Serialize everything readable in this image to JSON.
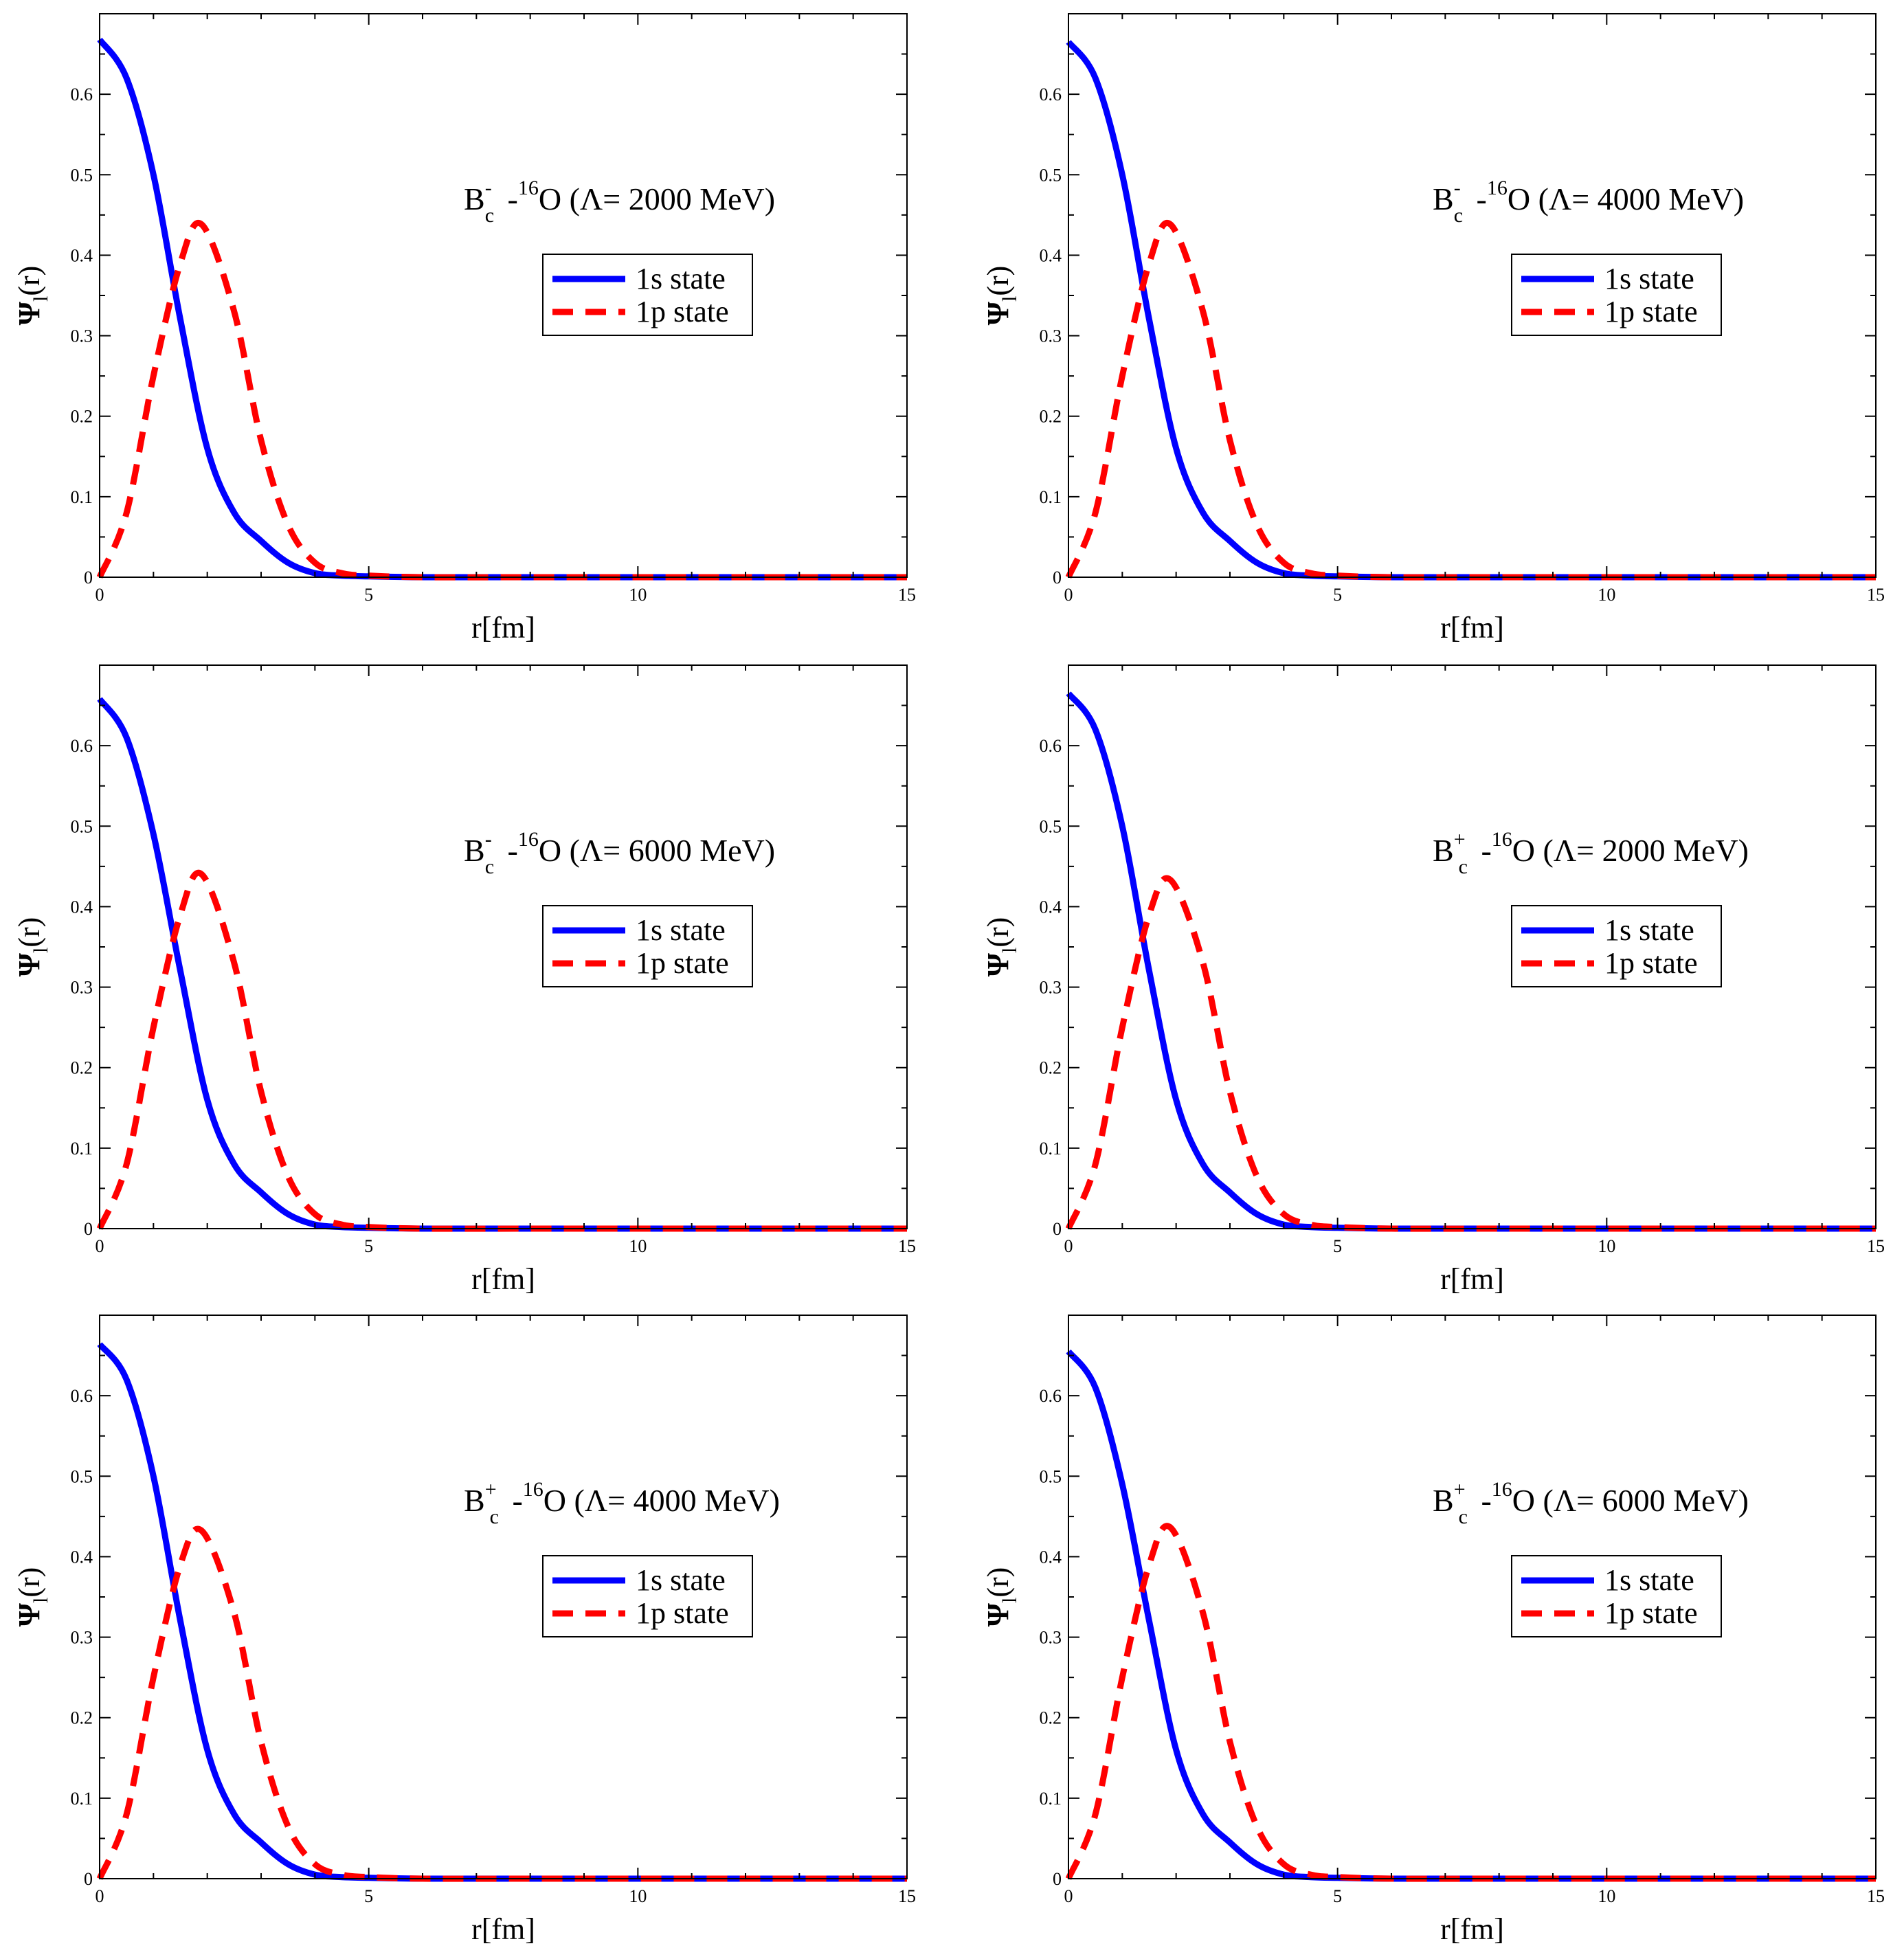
{
  "chart_data": [
    {
      "type": "line",
      "species": "B",
      "charge": "-",
      "subscript": "c",
      "nucleus_mass": "16",
      "nucleus": "O",
      "lambda_text": "(Λ= 2000 MeV)",
      "xlabel": "r[fm]",
      "ylabel_main": "Ψ",
      "ylabel_sub": "l",
      "ylabel_tail": "(r)",
      "xlim": [
        0,
        15
      ],
      "ylim": [
        0,
        0.7
      ],
      "xticks": [
        "0",
        "5",
        "10",
        "15"
      ],
      "yticks": [
        "0",
        "0.1",
        "0.2",
        "0.3",
        "0.4",
        "0.5",
        "0.6"
      ],
      "legend_location": "center-right",
      "series": [
        {
          "name": "1s state",
          "style": "solid",
          "color": "#0000ff",
          "x": [
            0,
            0.5,
            1.0,
            1.5,
            2.0,
            2.5,
            3.0,
            3.5,
            4.0,
            4.5,
            5.0,
            6.0,
            8.0,
            10.0,
            12.0,
            15.0
          ],
          "y": [
            0.668,
            0.62,
            0.5,
            0.32,
            0.16,
            0.08,
            0.045,
            0.018,
            0.005,
            0.002,
            0.001,
            0.0,
            0.0,
            0.0,
            0.0,
            0.0
          ]
        },
        {
          "name": "1p state",
          "style": "dashed",
          "color": "#ff0000",
          "x": [
            0,
            0.5,
            1.0,
            1.5,
            1.9,
            2.5,
            3.0,
            3.5,
            4.0,
            4.5,
            5.0,
            6.0,
            8.0,
            10.0,
            12.0,
            15.0
          ],
          "y": [
            0.0,
            0.08,
            0.25,
            0.39,
            0.438,
            0.33,
            0.17,
            0.065,
            0.018,
            0.005,
            0.002,
            0.0,
            0.0,
            0.0,
            0.0,
            0.0
          ]
        }
      ]
    },
    {
      "type": "line",
      "species": "B",
      "charge": "-",
      "subscript": "c",
      "nucleus_mass": "16",
      "nucleus": "O",
      "lambda_text": "(Λ= 4000 MeV)",
      "xlabel": "r[fm]",
      "ylabel_main": "Ψ",
      "ylabel_sub": "l",
      "ylabel_tail": "(r)",
      "xlim": [
        0,
        15
      ],
      "ylim": [
        0,
        0.7
      ],
      "xticks": [
        "0",
        "5",
        "10",
        "15"
      ],
      "yticks": [
        "0",
        "0.1",
        "0.2",
        "0.3",
        "0.4",
        "0.5",
        "0.6"
      ],
      "legend_location": "center-right",
      "series": [
        {
          "name": "1s state",
          "style": "solid",
          "color": "#0000ff",
          "x": [
            0,
            0.5,
            1.0,
            1.5,
            2.0,
            2.5,
            3.0,
            3.5,
            4.0,
            4.5,
            5.0,
            6.0,
            8.0,
            10.0,
            12.0,
            15.0
          ],
          "y": [
            0.665,
            0.62,
            0.5,
            0.32,
            0.16,
            0.08,
            0.045,
            0.018,
            0.005,
            0.002,
            0.001,
            0.0,
            0.0,
            0.0,
            0.0,
            0.0
          ]
        },
        {
          "name": "1p state",
          "style": "dashed",
          "color": "#ff0000",
          "x": [
            0,
            0.5,
            1.0,
            1.5,
            1.9,
            2.5,
            3.0,
            3.5,
            4.0,
            4.5,
            5.0,
            6.0,
            8.0,
            10.0,
            12.0,
            15.0
          ],
          "y": [
            0.0,
            0.08,
            0.25,
            0.39,
            0.438,
            0.33,
            0.17,
            0.065,
            0.018,
            0.005,
            0.002,
            0.0,
            0.0,
            0.0,
            0.0,
            0.0
          ]
        }
      ]
    },
    {
      "type": "line",
      "species": "B",
      "charge": "-",
      "subscript": "c",
      "nucleus_mass": "16",
      "nucleus": "O",
      "lambda_text": "(Λ= 6000 MeV)",
      "xlabel": "r[fm]",
      "ylabel_main": "Ψ",
      "ylabel_sub": "l",
      "ylabel_tail": "(r)",
      "xlim": [
        0,
        15
      ],
      "ylim": [
        0,
        0.7
      ],
      "xticks": [
        "0",
        "5",
        "10",
        "15"
      ],
      "yticks": [
        "0",
        "0.1",
        "0.2",
        "0.3",
        "0.4",
        "0.5",
        "0.6"
      ],
      "legend_location": "center-right",
      "series": [
        {
          "name": "1s state",
          "style": "solid",
          "color": "#0000ff",
          "x": [
            0,
            0.5,
            1.0,
            1.5,
            2.0,
            2.5,
            3.0,
            3.5,
            4.0,
            4.5,
            5.0,
            6.0,
            8.0,
            10.0,
            12.0,
            15.0
          ],
          "y": [
            0.658,
            0.61,
            0.49,
            0.32,
            0.16,
            0.08,
            0.045,
            0.018,
            0.005,
            0.002,
            0.001,
            0.0,
            0.0,
            0.0,
            0.0,
            0.0
          ]
        },
        {
          "name": "1p state",
          "style": "dashed",
          "color": "#ff0000",
          "x": [
            0,
            0.5,
            1.0,
            1.5,
            1.9,
            2.5,
            3.0,
            3.5,
            4.0,
            4.5,
            5.0,
            6.0,
            8.0,
            10.0,
            12.0,
            15.0
          ],
          "y": [
            0.0,
            0.08,
            0.25,
            0.39,
            0.44,
            0.33,
            0.17,
            0.065,
            0.018,
            0.005,
            0.002,
            0.0,
            0.0,
            0.0,
            0.0,
            0.0
          ]
        }
      ]
    },
    {
      "type": "line",
      "species": "B",
      "charge": "+",
      "subscript": "c",
      "nucleus_mass": "16",
      "nucleus": "O",
      "lambda_text": "(Λ= 2000 MeV)",
      "xlabel": "r[fm]",
      "ylabel_main": "Ψ",
      "ylabel_sub": "l",
      "ylabel_tail": "(r)",
      "xlim": [
        0,
        15
      ],
      "ylim": [
        0,
        0.7
      ],
      "xticks": [
        "0",
        "5",
        "10",
        "15"
      ],
      "yticks": [
        "0",
        "0.1",
        "0.2",
        "0.3",
        "0.4",
        "0.5",
        "0.6"
      ],
      "legend_location": "center-right",
      "series": [
        {
          "name": "1s state",
          "style": "solid",
          "color": "#0000ff",
          "x": [
            0,
            0.5,
            1.0,
            1.5,
            2.0,
            2.5,
            3.0,
            3.5,
            4.0,
            4.5,
            5.0,
            6.0,
            8.0,
            10.0,
            12.0,
            15.0
          ],
          "y": [
            0.665,
            0.62,
            0.5,
            0.32,
            0.16,
            0.08,
            0.045,
            0.018,
            0.005,
            0.002,
            0.001,
            0.0,
            0.0,
            0.0,
            0.0,
            0.0
          ]
        },
        {
          "name": "1p state",
          "style": "dashed",
          "color": "#ff0000",
          "x": [
            0,
            0.5,
            1.0,
            1.5,
            1.9,
            2.5,
            3.0,
            3.5,
            4.0,
            4.5,
            5.0,
            6.0,
            8.0,
            10.0,
            12.0,
            15.0
          ],
          "y": [
            0.0,
            0.08,
            0.25,
            0.39,
            0.433,
            0.33,
            0.17,
            0.065,
            0.018,
            0.005,
            0.002,
            0.0,
            0.0,
            0.0,
            0.0,
            0.0
          ]
        }
      ]
    },
    {
      "type": "line",
      "species": "B",
      "charge": "+",
      "subscript": "c",
      "nucleus_mass": "16",
      "nucleus": "O",
      "lambda_text": "(Λ= 4000 MeV)",
      "xlabel": "r[fm]",
      "ylabel_main": "Ψ",
      "ylabel_sub": "l",
      "ylabel_tail": "(r)",
      "xlim": [
        0,
        15
      ],
      "ylim": [
        0,
        0.7
      ],
      "xticks": [
        "0",
        "5",
        "10",
        "15"
      ],
      "yticks": [
        "0",
        "0.1",
        "0.2",
        "0.3",
        "0.4",
        "0.5",
        "0.6"
      ],
      "legend_location": "center-right",
      "series": [
        {
          "name": "1s state",
          "style": "solid",
          "color": "#0000ff",
          "x": [
            0,
            0.5,
            1.0,
            1.5,
            2.0,
            2.5,
            3.0,
            3.5,
            4.0,
            4.5,
            5.0,
            6.0,
            8.0,
            10.0,
            12.0,
            15.0
          ],
          "y": [
            0.664,
            0.62,
            0.5,
            0.32,
            0.16,
            0.08,
            0.045,
            0.018,
            0.005,
            0.002,
            0.001,
            0.0,
            0.0,
            0.0,
            0.0,
            0.0
          ]
        },
        {
          "name": "1p state",
          "style": "dashed",
          "color": "#ff0000",
          "x": [
            0,
            0.5,
            1.0,
            1.5,
            1.9,
            2.5,
            3.0,
            3.5,
            4.0,
            4.5,
            5.0,
            6.0,
            8.0,
            10.0,
            12.0,
            15.0
          ],
          "y": [
            0.0,
            0.08,
            0.25,
            0.39,
            0.432,
            0.33,
            0.17,
            0.065,
            0.018,
            0.005,
            0.002,
            0.0,
            0.0,
            0.0,
            0.0,
            0.0
          ]
        }
      ]
    },
    {
      "type": "line",
      "species": "B",
      "charge": "+",
      "subscript": "c",
      "nucleus_mass": "16",
      "nucleus": "O",
      "lambda_text": "(Λ= 6000 MeV)",
      "xlabel": "r[fm]",
      "ylabel_main": "Ψ",
      "ylabel_sub": "l",
      "ylabel_tail": "(r)",
      "xlim": [
        0,
        15
      ],
      "ylim": [
        0,
        0.7
      ],
      "xticks": [
        "0",
        "5",
        "10",
        "15"
      ],
      "yticks": [
        "0",
        "0.1",
        "0.2",
        "0.3",
        "0.4",
        "0.5",
        "0.6"
      ],
      "legend_location": "center-right",
      "series": [
        {
          "name": "1s state",
          "style": "solid",
          "color": "#0000ff",
          "x": [
            0,
            0.5,
            1.0,
            1.5,
            2.0,
            2.5,
            3.0,
            3.5,
            4.0,
            4.5,
            5.0,
            6.0,
            8.0,
            10.0,
            12.0,
            15.0
          ],
          "y": [
            0.655,
            0.61,
            0.49,
            0.32,
            0.16,
            0.08,
            0.045,
            0.018,
            0.005,
            0.002,
            0.001,
            0.0,
            0.0,
            0.0,
            0.0,
            0.0
          ]
        },
        {
          "name": "1p state",
          "style": "dashed",
          "color": "#ff0000",
          "x": [
            0,
            0.5,
            1.0,
            1.5,
            1.9,
            2.5,
            3.0,
            3.5,
            4.0,
            4.5,
            5.0,
            6.0,
            8.0,
            10.0,
            12.0,
            15.0
          ],
          "y": [
            0.0,
            0.08,
            0.25,
            0.39,
            0.436,
            0.33,
            0.17,
            0.065,
            0.018,
            0.005,
            0.002,
            0.0,
            0.0,
            0.0,
            0.0,
            0.0
          ]
        }
      ]
    }
  ]
}
